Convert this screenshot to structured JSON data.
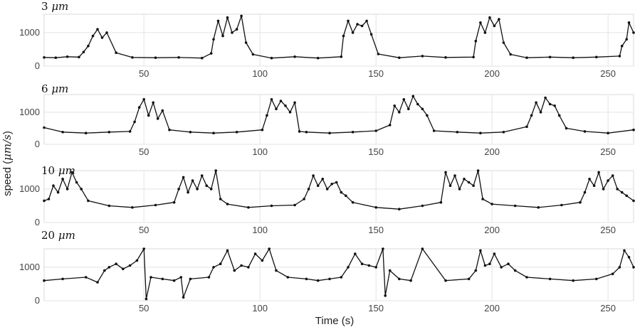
{
  "chart_data": [
    {
      "type": "line",
      "title_number": "3",
      "title_unit": "μm",
      "xlim": [
        7,
        261
      ],
      "ylim": [
        0,
        1550
      ],
      "xticks": [
        "50",
        "100",
        "150",
        "200",
        "250"
      ],
      "yticks": [
        "0",
        "1000"
      ],
      "x": [
        7,
        12,
        17,
        22,
        24,
        26,
        28,
        30,
        32,
        34,
        38,
        45,
        55,
        65,
        75,
        79,
        80,
        82,
        84,
        86,
        88,
        90,
        92,
        94,
        97,
        105,
        115,
        125,
        135,
        136,
        138,
        140,
        142,
        144,
        146,
        148,
        151,
        160,
        170,
        180,
        192,
        193,
        195,
        197,
        199,
        201,
        203,
        205,
        208,
        215,
        225,
        235,
        245,
        255,
        256,
        258,
        259,
        261
      ],
      "y": [
        260,
        250,
        280,
        270,
        420,
        600,
        900,
        1100,
        850,
        1000,
        400,
        260,
        250,
        260,
        240,
        380,
        800,
        1350,
        900,
        1450,
        1000,
        1100,
        1500,
        700,
        350,
        240,
        280,
        240,
        280,
        900,
        1350,
        1000,
        1250,
        1200,
        1350,
        950,
        360,
        250,
        300,
        260,
        270,
        750,
        1300,
        1000,
        1450,
        1200,
        1400,
        700,
        350,
        250,
        270,
        250,
        270,
        300,
        600,
        800,
        1300,
        1000
      ]
    },
    {
      "type": "line",
      "title_number": "6",
      "title_unit": "μm",
      "xlim": [
        7,
        261
      ],
      "ylim": [
        0,
        1550
      ],
      "xticks": [
        "50",
        "100",
        "150",
        "200",
        "250"
      ],
      "yticks": [
        "0",
        "1000"
      ],
      "x": [
        7,
        15,
        25,
        35,
        44,
        46,
        48,
        50,
        52,
        54,
        56,
        58,
        61,
        70,
        80,
        90,
        101,
        103,
        105,
        107,
        109,
        111,
        113,
        115,
        117,
        120,
        130,
        140,
        150,
        156,
        158,
        160,
        162,
        164,
        166,
        168,
        170,
        172,
        175,
        185,
        195,
        205,
        215,
        217,
        219,
        221,
        223,
        225,
        227,
        229,
        232,
        240,
        250,
        261
      ],
      "y": [
        520,
        380,
        350,
        380,
        400,
        700,
        1150,
        1400,
        900,
        1300,
        800,
        1050,
        450,
        380,
        350,
        380,
        450,
        900,
        1400,
        1100,
        1350,
        1200,
        1000,
        1300,
        400,
        380,
        350,
        380,
        420,
        600,
        1200,
        1000,
        1400,
        1100,
        1500,
        1250,
        1100,
        900,
        420,
        380,
        350,
        380,
        550,
        900,
        1300,
        1000,
        1450,
        1250,
        1200,
        900,
        500,
        400,
        350,
        450
      ]
    },
    {
      "type": "line",
      "title_number": "10",
      "title_unit": "μm",
      "xlim": [
        7,
        261
      ],
      "ylim": [
        0,
        1550
      ],
      "xticks": [
        "50",
        "100",
        "150",
        "200",
        "250"
      ],
      "yticks": [
        "0",
        "1000"
      ],
      "x": [
        7,
        9,
        11,
        13,
        15,
        17,
        19,
        21,
        23,
        26,
        35,
        45,
        55,
        63,
        65,
        67,
        69,
        71,
        73,
        75,
        77,
        79,
        81,
        83,
        86,
        95,
        105,
        115,
        119,
        121,
        123,
        125,
        127,
        129,
        131,
        133,
        135,
        137,
        140,
        150,
        160,
        170,
        178,
        180,
        182,
        184,
        186,
        188,
        190,
        192,
        194,
        196,
        200,
        210,
        220,
        230,
        238,
        240,
        242,
        244,
        246,
        248,
        250,
        252,
        254,
        256,
        258,
        261
      ],
      "y": [
        650,
        700,
        1100,
        900,
        1300,
        1000,
        1500,
        1200,
        1000,
        650,
        500,
        450,
        520,
        600,
        1000,
        1350,
        900,
        1250,
        1000,
        1400,
        1100,
        1000,
        1600,
        700,
        550,
        450,
        500,
        520,
        700,
        1000,
        1400,
        1100,
        1300,
        1000,
        1150,
        1200,
        900,
        800,
        600,
        450,
        400,
        500,
        600,
        1500,
        1100,
        1400,
        1000,
        1300,
        1200,
        1100,
        1600,
        700,
        550,
        500,
        450,
        520,
        600,
        900,
        1300,
        1100,
        1500,
        1000,
        1250,
        1400,
        1000,
        900,
        800,
        650
      ]
    },
    {
      "type": "line",
      "title_number": "20",
      "title_unit": "μm",
      "xlim": [
        7,
        261
      ],
      "ylim": [
        0,
        1550
      ],
      "xticks": [
        "50",
        "100",
        "150",
        "200",
        "250"
      ],
      "yticks": [
        "0",
        "1000"
      ],
      "x": [
        7,
        15,
        25,
        30,
        33,
        35,
        38,
        41,
        44,
        47,
        50,
        51,
        53,
        58,
        63,
        66,
        67,
        70,
        78,
        80,
        83,
        86,
        89,
        92,
        95,
        98,
        101,
        104,
        107,
        112,
        120,
        125,
        130,
        135,
        138,
        141,
        144,
        147,
        150,
        153,
        154,
        156,
        160,
        165,
        170,
        180,
        190,
        193,
        195,
        197,
        199,
        201,
        204,
        207,
        210,
        215,
        225,
        235,
        245,
        252,
        255,
        257,
        259,
        261
      ],
      "y": [
        600,
        650,
        700,
        550,
        900,
        1000,
        1100,
        950,
        1050,
        1200,
        1600,
        50,
        700,
        650,
        600,
        700,
        100,
        650,
        700,
        1000,
        1100,
        1500,
        900,
        1050,
        1000,
        1400,
        1200,
        1600,
        900,
        700,
        650,
        600,
        650,
        700,
        1000,
        1400,
        1100,
        1050,
        1000,
        1600,
        150,
        900,
        650,
        600,
        1550,
        600,
        650,
        900,
        1500,
        1050,
        1100,
        1400,
        1000,
        1100,
        900,
        700,
        650,
        600,
        650,
        800,
        1000,
        1500,
        1300,
        1000
      ]
    }
  ],
  "xlabel": "Time (s)",
  "ylabel_prefix": "speed (",
  "ylabel_unit": "μm/s",
  "ylabel_suffix": ")"
}
